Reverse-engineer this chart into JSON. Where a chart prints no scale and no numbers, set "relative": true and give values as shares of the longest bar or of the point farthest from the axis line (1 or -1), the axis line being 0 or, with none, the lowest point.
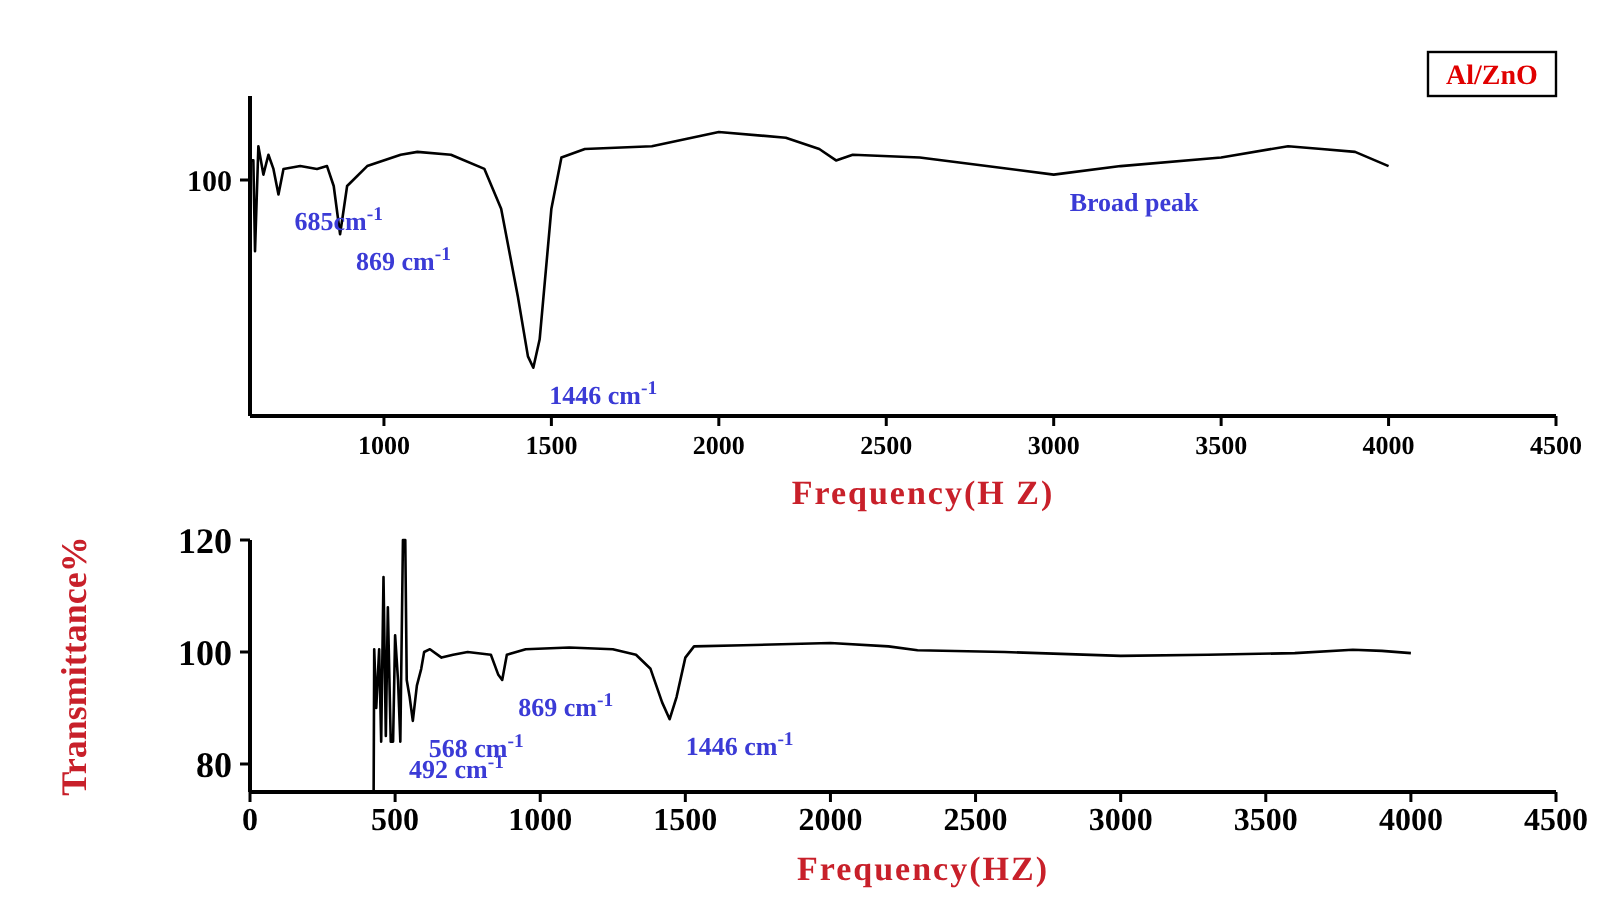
{
  "chart_data": [
    {
      "type": "line",
      "title": "Al/ZnO",
      "xlabel": "Frequency(H Z)",
      "relative": true,
      "xlim": [
        600,
        4500
      ],
      "xticks": [
        1000,
        1500,
        2000,
        2500,
        3000,
        3500,
        4000,
        4500
      ],
      "series": [
        {
          "color": "#000000",
          "x": [
            605,
            610,
            615,
            625,
            640,
            655,
            670,
            685,
            700,
            750,
            800,
            830,
            850,
            869,
            890,
            950,
            1050,
            1100,
            1200,
            1300,
            1350,
            1400,
            1430,
            1446,
            1465,
            1500,
            1530,
            1600,
            1800,
            2000,
            2200,
            2300,
            2350,
            2400,
            2600,
            2800,
            3000,
            3200,
            3500,
            3700,
            3800,
            3900,
            4000
          ],
          "values": [
            0.9,
            0.9,
            0.58,
            0.95,
            0.85,
            0.92,
            0.87,
            0.78,
            0.87,
            0.88,
            0.87,
            0.88,
            0.81,
            0.64,
            0.81,
            0.88,
            0.92,
            0.93,
            0.92,
            0.87,
            0.73,
            0.42,
            0.21,
            0.17,
            0.27,
            0.73,
            0.91,
            0.94,
            0.95,
            1,
            0.98,
            0.94,
            0.9,
            0.92,
            0.91,
            0.88,
            0.85,
            0.88,
            0.91,
            0.95,
            0.94,
            0.93,
            0.88
          ]
        }
      ],
      "annotations": [
        "100",
        {
          "text": "685cm$^{-1}$",
          "x": 685,
          "y": 0.78
        },
        {
          "text": "869 cm$^{-1}$",
          "x": 869,
          "y": 0.64
        },
        {
          "text": "1446 cm$^{-1}$",
          "x": 1446,
          "y": 0.17
        },
        {
          "text": "Broad peak",
          "x": 3000,
          "y": 0.85
        }
      ]
    },
    {
      "type": "line",
      "xlabel": "Frequency(HZ)",
      "ylabel": "Transmittance%",
      "xlim": [
        0,
        4500
      ],
      "ylim": [
        75,
        120
      ],
      "xticks": [
        0,
        500,
        1000,
        1500,
        2000,
        2500,
        3000,
        3500,
        4000,
        4500
      ],
      "yticks": [
        80,
        100,
        120
      ],
      "series": [
        {
          "color": "#000000",
          "x": [
            426,
            428,
            435,
            445,
            452,
            460,
            468,
            475,
            485,
            493,
            500,
            510,
            518,
            527,
            535,
            540,
            550,
            561,
            575,
            590,
            600,
            620,
            660,
            700,
            750,
            830,
            855,
            869,
            885,
            950,
            1100,
            1250,
            1330,
            1380,
            1420,
            1446,
            1470,
            1500,
            1530,
            1700,
            2000,
            2200,
            2300,
            2600,
            3000,
            3300,
            3600,
            3800,
            3900,
            4000
          ],
          "values": [
            75,
            100.5,
            90,
            100.5,
            84,
            113.4,
            85,
            108,
            84,
            84,
            103,
            95,
            84,
            120,
            120,
            95,
            92,
            87.7,
            94,
            97,
            100,
            100.5,
            99,
            99.5,
            100,
            99.5,
            96,
            95,
            99.5,
            100.5,
            100.8,
            100.5,
            99.5,
            97,
            91,
            88,
            92,
            99,
            101,
            101.2,
            101.6,
            101,
            100.3,
            100,
            99.3,
            99.5,
            99.8,
            100.4,
            100.2,
            99.8
          ]
        }
      ],
      "annotations": [
        {
          "text": "869 cm$^{-1}$",
          "x": 869,
          "y": 95
        },
        {
          "text": "1446 cm$^{-1}$",
          "x": 1446,
          "y": 88
        },
        {
          "text": "568 cm$^{-1}$",
          "x": 561,
          "y": 87.7
        },
        {
          "text": "492 cm$^{-1}$",
          "x": 493,
          "y": 84
        }
      ]
    }
  ]
}
